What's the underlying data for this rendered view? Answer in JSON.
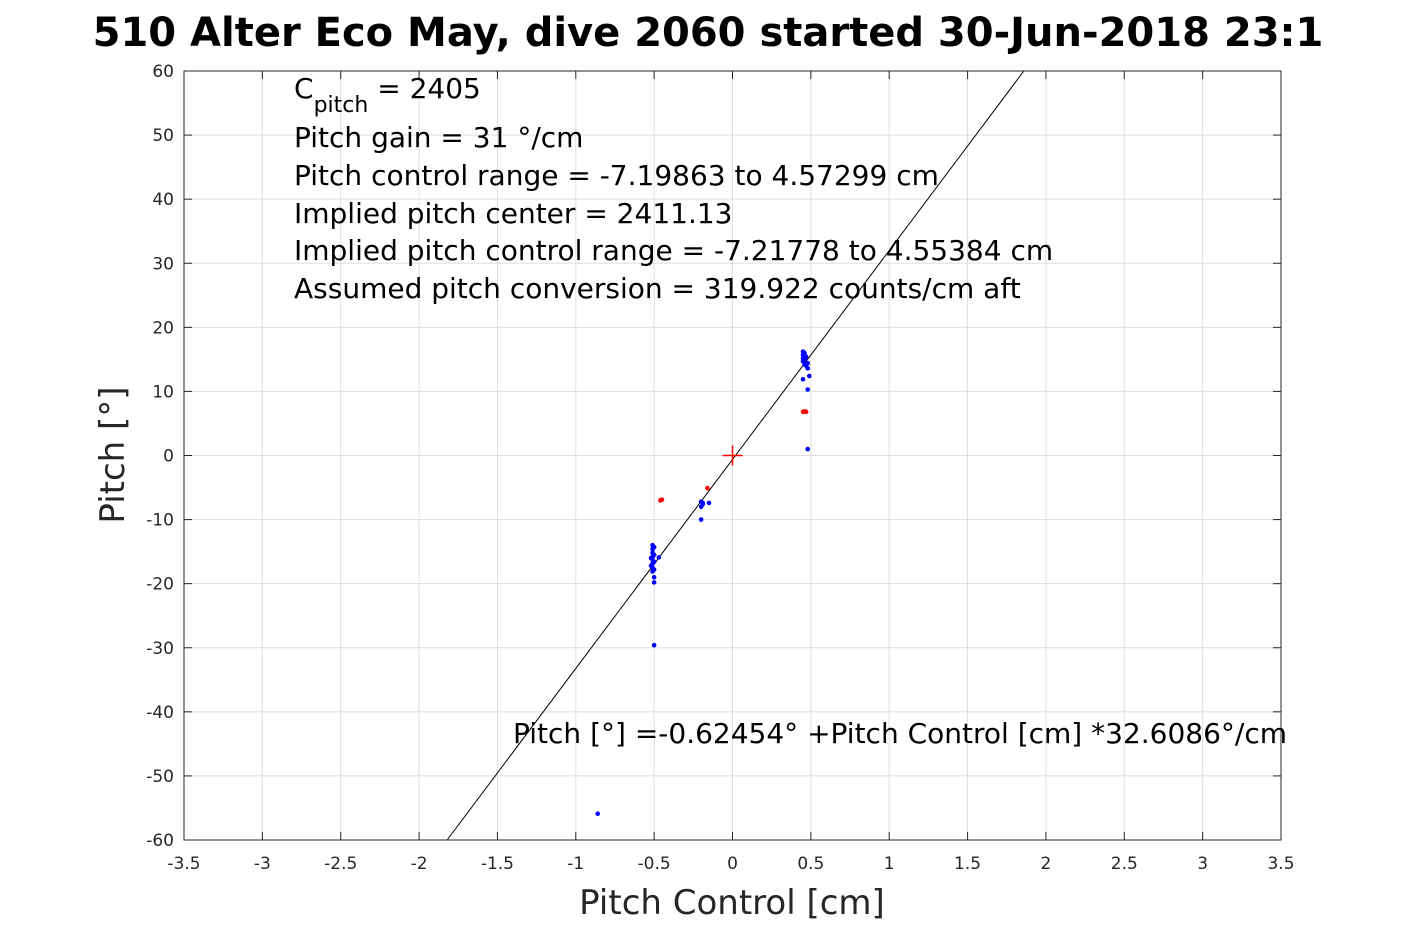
{
  "chart_data": {
    "type": "scatter",
    "title": "510 Alter Eco May, dive 2060 started 30-Jun-2018 23:1",
    "xlabel": "Pitch Control [cm]",
    "ylabel": "Pitch [°]",
    "xlim": [
      -3.5,
      3.5
    ],
    "ylim": [
      -60,
      60
    ],
    "xticks": [
      -3.5,
      -3,
      -2.5,
      -2,
      -1.5,
      -1,
      -0.5,
      0,
      0.5,
      1,
      1.5,
      2,
      2.5,
      3,
      3.5
    ],
    "xtick_labels": [
      "-3.5",
      "-3",
      "-2.5",
      "-2",
      "-1.5",
      "-1",
      "-0.5",
      "0",
      "0.5",
      "1",
      "1.5",
      "2",
      "2.5",
      "3",
      "3.5"
    ],
    "yticks": [
      -60,
      -50,
      -40,
      -30,
      -20,
      -10,
      0,
      10,
      20,
      30,
      40,
      50,
      60
    ],
    "ytick_labels": [
      "-60",
      "-50",
      "-40",
      "-30",
      "-20",
      "-10",
      "0",
      "10",
      "20",
      "30",
      "40",
      "50",
      "60"
    ],
    "grid": true,
    "colors": {
      "series_blue": "#0000ff",
      "series_red": "#ff0000",
      "fit_line": "#000000",
      "center_marker": "#ff0000"
    },
    "series": [
      {
        "color": "blue",
        "points": [
          [
            -0.51,
            -14.0
          ],
          [
            -0.51,
            -14.6
          ],
          [
            -0.51,
            -15.2
          ],
          [
            -0.51,
            -15.8
          ],
          [
            -0.51,
            -16.3
          ],
          [
            -0.51,
            -16.9
          ],
          [
            -0.51,
            -17.5
          ],
          [
            -0.51,
            -18.1
          ],
          [
            -0.5,
            -14.3
          ],
          [
            -0.5,
            -15.5
          ],
          [
            -0.5,
            -16.6
          ],
          [
            -0.5,
            -17.8
          ],
          [
            -0.5,
            -19.0
          ],
          [
            -0.5,
            -19.8
          ],
          [
            -0.52,
            -16.0
          ],
          [
            -0.52,
            -17.2
          ],
          [
            -0.47,
            -15.9
          ],
          [
            -0.5,
            -29.6
          ],
          [
            -0.86,
            -55.9
          ],
          [
            -0.2,
            -7.2
          ],
          [
            -0.19,
            -7.6
          ],
          [
            -0.2,
            -8.0
          ],
          [
            -0.19,
            -7.4
          ],
          [
            -0.15,
            -7.4
          ],
          [
            -0.2,
            -10.0
          ],
          [
            0.45,
            16.2
          ],
          [
            0.45,
            15.7
          ],
          [
            0.45,
            15.2
          ],
          [
            0.45,
            14.7
          ],
          [
            0.46,
            14.2
          ],
          [
            0.46,
            16.0
          ],
          [
            0.46,
            15.0
          ],
          [
            0.47,
            14.0
          ],
          [
            0.48,
            13.6
          ],
          [
            0.48,
            14.4
          ],
          [
            0.47,
            15.4
          ],
          [
            0.49,
            12.4
          ],
          [
            0.45,
            11.9
          ],
          [
            0.48,
            10.3
          ],
          [
            0.48,
            1.0
          ]
        ]
      },
      {
        "color": "red",
        "points": [
          [
            -0.46,
            -7.0
          ],
          [
            -0.45,
            -6.9
          ],
          [
            -0.16,
            -5.1
          ],
          [
            0.45,
            6.8
          ],
          [
            0.46,
            6.9
          ],
          [
            0.47,
            6.8
          ]
        ]
      }
    ],
    "fit_line": {
      "intercept": -0.62454,
      "slope": 32.6086
    },
    "center_marker": [
      0,
      0
    ],
    "annotations": {
      "c_pitch_symbol": "C",
      "c_pitch_subscript": "pitch",
      "c_pitch_value": " = 2405",
      "line2": "Pitch gain = 31 °/cm",
      "line3": "Pitch control range = -7.19863 to 4.57299 cm",
      "line4": "Implied pitch center = 2411.13",
      "line5": "Implied pitch control range = -7.21778 to 4.55384 cm",
      "line6": "Assumed pitch conversion = 319.922 counts/cm aft",
      "equation": "Pitch [°] =-0.62454° +Pitch Control [cm] *32.6086°/cm"
    }
  }
}
